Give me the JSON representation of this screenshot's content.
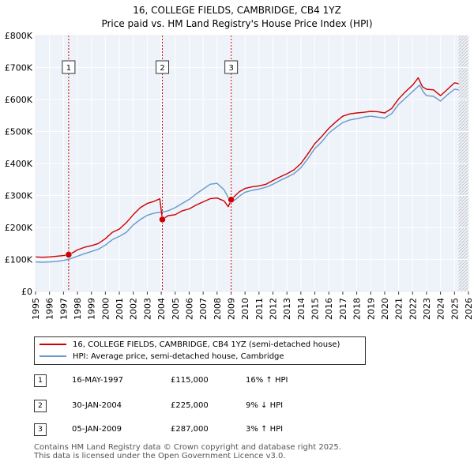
{
  "chart_data": {
    "type": "line",
    "title": "16, COLLEGE FIELDS, CAMBRIDGE, CB4 1YZ",
    "subtitle": "Price paid vs. HM Land Registry's House Price Index (HPI)",
    "xlim": [
      1995,
      2026
    ],
    "ylim": [
      0,
      800000
    ],
    "y_ticks": [
      0,
      100000,
      200000,
      300000,
      400000,
      500000,
      600000,
      700000,
      800000
    ],
    "y_tick_labels": [
      "£0",
      "£100K",
      "£200K",
      "£300K",
      "£400K",
      "£500K",
      "£600K",
      "£700K",
      "£800K"
    ],
    "x_ticks": [
      "1995",
      "1996",
      "1997",
      "1998",
      "1999",
      "2000",
      "2001",
      "2002",
      "2003",
      "2004",
      "2005",
      "2006",
      "2007",
      "2008",
      "2009",
      "2010",
      "2011",
      "2012",
      "2013",
      "2014",
      "2015",
      "2016",
      "2017",
      "2018",
      "2019",
      "2020",
      "2021",
      "2022",
      "2023",
      "2024",
      "2025",
      "2026"
    ],
    "grid": true,
    "series": [
      {
        "name": "16, COLLEGE FIELDS, CAMBRIDGE, CB4 1YZ (semi-detached house)",
        "color": "#cc0000",
        "x": [
          1995.0,
          1995.5,
          1996.0,
          1996.5,
          1997.0,
          1997.37,
          1997.7,
          1998.0,
          1998.5,
          1999.0,
          1999.5,
          2000.0,
          2000.5,
          2001.0,
          2001.5,
          2002.0,
          2002.5,
          2003.0,
          2003.5,
          2003.9,
          2004.08,
          2004.5,
          2005.0,
          2005.5,
          2006.0,
          2006.5,
          2007.0,
          2007.5,
          2008.0,
          2008.5,
          2008.8,
          2009.01,
          2009.3,
          2009.6,
          2010.0,
          2010.5,
          2011.0,
          2011.5,
          2012.0,
          2012.5,
          2013.0,
          2013.5,
          2014.0,
          2014.5,
          2015.0,
          2015.5,
          2016.0,
          2016.5,
          2017.0,
          2017.5,
          2018.0,
          2018.5,
          2019.0,
          2019.5,
          2020.0,
          2020.5,
          2021.0,
          2021.5,
          2022.0,
          2022.4,
          2022.7,
          2023.0,
          2023.5,
          2024.0,
          2024.5,
          2025.0,
          2025.3
        ],
        "values": [
          108000,
          107000,
          108000,
          110000,
          112000,
          115000,
          122000,
          130000,
          138000,
          143000,
          150000,
          165000,
          185000,
          195000,
          215000,
          240000,
          262000,
          275000,
          282000,
          290000,
          225000,
          237000,
          240000,
          252000,
          258000,
          270000,
          280000,
          290000,
          292000,
          283000,
          265000,
          287000,
          300000,
          312000,
          322000,
          327000,
          330000,
          335000,
          347000,
          358000,
          368000,
          380000,
          400000,
          430000,
          462000,
          485000,
          510000,
          530000,
          548000,
          555000,
          558000,
          560000,
          563000,
          562000,
          558000,
          572000,
          602000,
          625000,
          645000,
          668000,
          640000,
          632000,
          630000,
          612000,
          632000,
          652000,
          650000
        ]
      },
      {
        "name": "HPI: Average price, semi-detached house, Cambridge",
        "color": "#6699cc",
        "x": [
          1995.0,
          1995.5,
          1996.0,
          1996.5,
          1997.0,
          1997.5,
          1998.0,
          1998.5,
          1999.0,
          1999.5,
          2000.0,
          2000.5,
          2001.0,
          2001.5,
          2002.0,
          2002.5,
          2003.0,
          2003.5,
          2004.0,
          2004.5,
          2005.0,
          2005.5,
          2006.0,
          2006.5,
          2007.0,
          2007.5,
          2008.0,
          2008.5,
          2008.9,
          2009.2,
          2009.6,
          2010.0,
          2010.5,
          2011.0,
          2011.5,
          2012.0,
          2012.5,
          2013.0,
          2013.5,
          2014.0,
          2014.5,
          2015.0,
          2015.5,
          2016.0,
          2016.5,
          2017.0,
          2017.5,
          2018.0,
          2018.5,
          2019.0,
          2019.5,
          2020.0,
          2020.5,
          2021.0,
          2021.5,
          2022.0,
          2022.5,
          2022.8,
          2023.0,
          2023.5,
          2024.0,
          2024.5,
          2025.0,
          2025.3
        ],
        "values": [
          92000,
          91000,
          92000,
          94000,
          97000,
          102000,
          110000,
          118000,
          125000,
          132000,
          145000,
          162000,
          172000,
          185000,
          208000,
          225000,
          238000,
          245000,
          248000,
          252000,
          262000,
          275000,
          288000,
          305000,
          320000,
          335000,
          338000,
          318000,
          285000,
          283000,
          298000,
          310000,
          316000,
          320000,
          326000,
          335000,
          347000,
          357000,
          368000,
          387000,
          415000,
          447000,
          468000,
          495000,
          512000,
          528000,
          536000,
          540000,
          545000,
          548000,
          545000,
          542000,
          556000,
          585000,
          605000,
          625000,
          645000,
          622000,
          612000,
          610000,
          595000,
          615000,
          632000,
          630000
        ]
      }
    ],
    "sales": [
      {
        "id": "1",
        "x": 1997.37,
        "value": 115000
      },
      {
        "id": "2",
        "x": 2004.08,
        "value": 225000
      },
      {
        "id": "3",
        "x": 2009.01,
        "value": 287000
      }
    ]
  },
  "legend": {
    "property_label": "16, COLLEGE FIELDS, CAMBRIDGE, CB4 1YZ (semi-detached house)",
    "hpi_label": "HPI: Average price, semi-detached house, Cambridge"
  },
  "transactions": [
    {
      "num": "1",
      "date": "16-MAY-1997",
      "price": "£115,000",
      "hpi": "16% ↑ HPI"
    },
    {
      "num": "2",
      "date": "30-JAN-2004",
      "price": "£225,000",
      "hpi": "9% ↓ HPI"
    },
    {
      "num": "3",
      "date": "05-JAN-2009",
      "price": "£287,000",
      "hpi": "3% ↑ HPI"
    }
  ],
  "footer": {
    "line1": "Contains HM Land Registry data © Crown copyright and database right 2025.",
    "line2": "This data is licensed under the Open Government Licence v3.0."
  }
}
